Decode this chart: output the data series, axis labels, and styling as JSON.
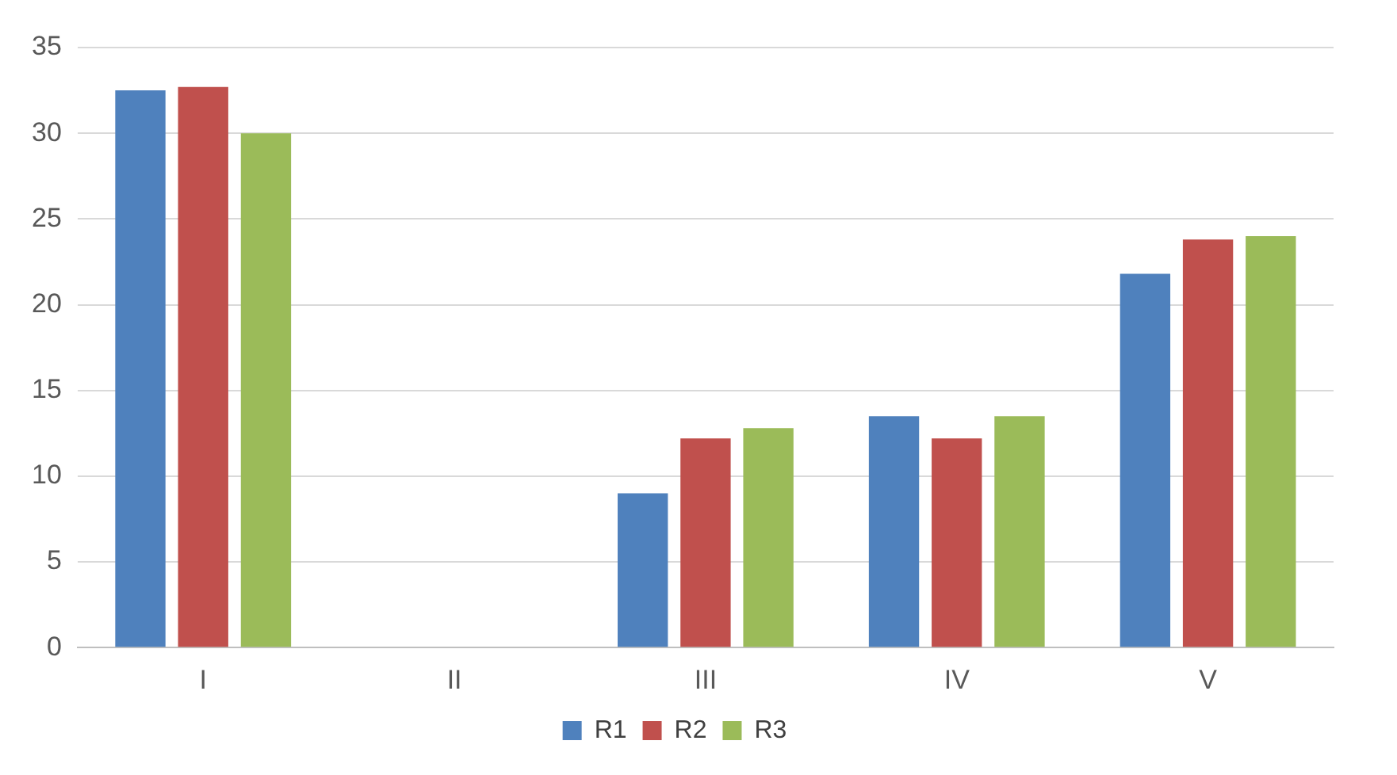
{
  "chart_data": {
    "type": "bar",
    "categories": [
      "I",
      "II",
      "III",
      "IV",
      "V"
    ],
    "series": [
      {
        "name": "R1",
        "color": "#4f81bd",
        "values": [
          32.5,
          0,
          9,
          13.5,
          21.8
        ]
      },
      {
        "name": "R2",
        "color": "#c0504d",
        "values": [
          32.7,
          0,
          12.2,
          12.2,
          23.8
        ]
      },
      {
        "name": "R3",
        "color": "#9bbb59",
        "values": [
          30,
          0,
          12.8,
          13.5,
          24
        ]
      }
    ],
    "ylim": [
      0,
      35
    ],
    "yticks": [
      0,
      5,
      10,
      15,
      20,
      25,
      30,
      35
    ],
    "grid": "y",
    "legend": "bottom"
  }
}
